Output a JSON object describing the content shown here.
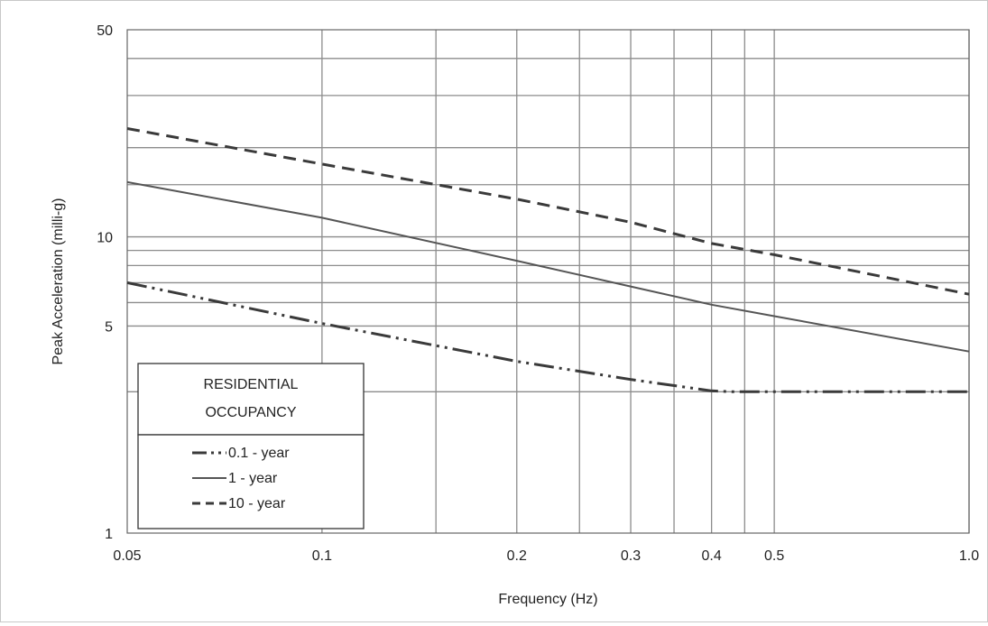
{
  "chart_data": {
    "type": "line",
    "xlabel": "Frequency (Hz)",
    "ylabel": "Peak Acceleration (milli-g)",
    "x_scale": "log",
    "y_scale": "log",
    "xlim": [
      0.05,
      1.0
    ],
    "ylim": [
      1,
      50
    ],
    "grid": true,
    "x_ticks": [
      {
        "value": 0.05,
        "label": "0.05"
      },
      {
        "value": 0.1,
        "label": "0.1"
      },
      {
        "value": 0.2,
        "label": "0.2"
      },
      {
        "value": 0.3,
        "label": "0.3"
      },
      {
        "value": 0.4,
        "label": "0.4"
      },
      {
        "value": 0.5,
        "label": "0.5"
      },
      {
        "value": 1.0,
        "label": "1.0"
      }
    ],
    "x_gridlines": [
      0.1,
      0.15,
      0.2,
      0.25,
      0.3,
      0.35,
      0.4,
      0.45,
      0.5,
      1.0
    ],
    "y_ticks": [
      {
        "value": 1,
        "label": "1"
      },
      {
        "value": 5,
        "label": "5"
      },
      {
        "value": 10,
        "label": "10"
      },
      {
        "value": 50,
        "label": "50"
      }
    ],
    "y_gridlines": [
      3,
      5,
      6,
      7,
      8,
      9,
      10,
      15,
      20,
      30,
      40
    ],
    "legend": {
      "title_line1": "RESIDENTIAL",
      "title_line2": "OCCUPANCY",
      "position": "bottom-left"
    },
    "series": [
      {
        "name": "0.1 - year",
        "style": "dash-dot-dot",
        "color": "#3a3a3a",
        "x": [
          0.05,
          0.1,
          0.2,
          0.3,
          0.4,
          0.43,
          1.0
        ],
        "y": [
          7.0,
          5.1,
          3.8,
          3.3,
          3.02,
          3.0,
          3.0
        ]
      },
      {
        "name": "1 - year",
        "style": "solid",
        "color": "#555555",
        "x": [
          0.05,
          0.1,
          0.2,
          0.3,
          0.4,
          0.5,
          1.0
        ],
        "y": [
          15.3,
          11.6,
          8.3,
          6.8,
          5.9,
          5.4,
          4.1
        ]
      },
      {
        "name": "10 - year",
        "style": "dashed",
        "color": "#3a3a3a",
        "x": [
          0.05,
          0.1,
          0.2,
          0.3,
          0.4,
          0.5,
          1.0
        ],
        "y": [
          23.2,
          17.6,
          13.4,
          11.2,
          9.5,
          8.7,
          6.4
        ]
      }
    ]
  }
}
